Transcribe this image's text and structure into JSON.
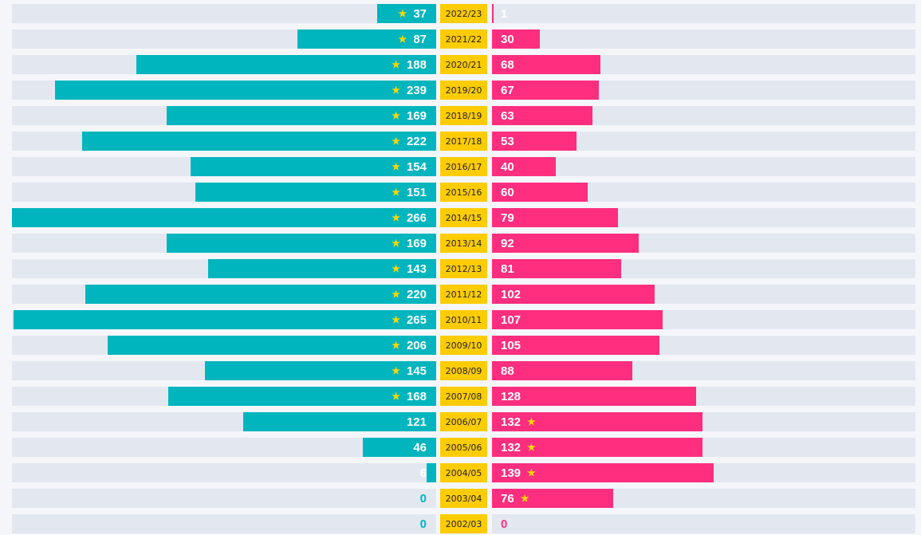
{
  "colors": {
    "left_bar": "#00b5bd",
    "right_bar": "#ff2e7e",
    "track": "#e3e8f0",
    "season_bg": "#ffcc00",
    "star": "#ffd700",
    "label_on_bar": "#ffffff"
  },
  "chart_data": {
    "type": "bar",
    "orientation": "horizontal-diverging",
    "categories": [
      "2022/23",
      "2021/22",
      "2020/21",
      "2019/20",
      "2018/19",
      "2017/18",
      "2016/17",
      "2015/16",
      "2014/15",
      "2013/14",
      "2012/13",
      "2011/12",
      "2010/11",
      "2009/10",
      "2008/09",
      "2007/08",
      "2006/07",
      "2005/06",
      "2004/05",
      "2003/04",
      "2002/03"
    ],
    "series": [
      {
        "values": [
          37,
          87,
          188,
          239,
          169,
          222,
          154,
          151,
          266,
          169,
          143,
          220,
          265,
          206,
          145,
          168,
          121,
          46,
          6,
          0,
          0
        ],
        "starred": [
          true,
          true,
          true,
          true,
          true,
          true,
          true,
          true,
          true,
          true,
          true,
          true,
          true,
          true,
          true,
          true,
          false,
          false,
          false,
          false,
          false
        ]
      },
      {
        "values": [
          1,
          30,
          68,
          67,
          63,
          53,
          40,
          60,
          79,
          92,
          81,
          102,
          107,
          105,
          88,
          128,
          132,
          132,
          139,
          76,
          0
        ],
        "starred": [
          false,
          false,
          false,
          false,
          false,
          false,
          false,
          false,
          false,
          false,
          false,
          false,
          false,
          false,
          false,
          false,
          true,
          true,
          true,
          true,
          false
        ]
      }
    ],
    "xlim": [
      0,
      266
    ],
    "star_icon": "star-icon"
  }
}
